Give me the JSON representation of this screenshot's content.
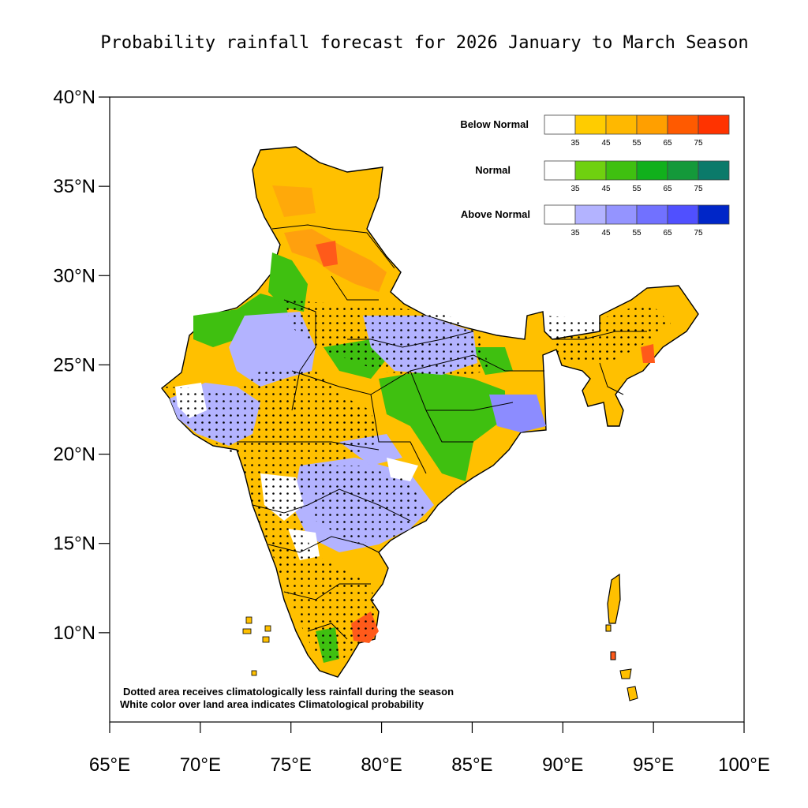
{
  "title": "Probability rainfall forecast for 2026 January to March Season",
  "axes": {
    "lat_labels": [
      "10°N",
      "15°N",
      "20°N",
      "25°N",
      "30°N",
      "35°N",
      "40°N"
    ],
    "lon_labels": [
      "65°E",
      "70°E",
      "75°E",
      "80°E",
      "85°E",
      "90°E",
      "95°E",
      "100°E"
    ],
    "lat_range": [
      5,
      40
    ],
    "lon_range": [
      65,
      100
    ]
  },
  "legend": {
    "tick_labels": [
      "35",
      "45",
      "55",
      "65",
      "75"
    ],
    "categories": [
      {
        "name": "Below Normal",
        "colors": [
          "#ffffff",
          "#ffcc00",
          "#ffb800",
          "#ff9f00",
          "#ff5a00",
          "#ff3300"
        ]
      },
      {
        "name": "Normal",
        "colors": [
          "#ffffff",
          "#6fd10f",
          "#3fc010",
          "#11b01c",
          "#14993a",
          "#0b7a6a"
        ]
      },
      {
        "name": "Above Normal",
        "colors": [
          "#ffffff",
          "#b3b3ff",
          "#9494ff",
          "#7171ff",
          "#5050ff",
          "#0026c8"
        ]
      }
    ]
  },
  "notes": {
    "line1": "Dotted area receives climatologically less rainfall during the season",
    "line2": "White color over land area indicates Climatological probability"
  },
  "colors": {
    "below": "#ffc000",
    "below_strong": "#ff9a10",
    "below_red": "#ff5a1a",
    "normal": "#3fc010",
    "above": "#b3b3ff",
    "above_strong": "#8c8cff",
    "border": "#000000"
  }
}
